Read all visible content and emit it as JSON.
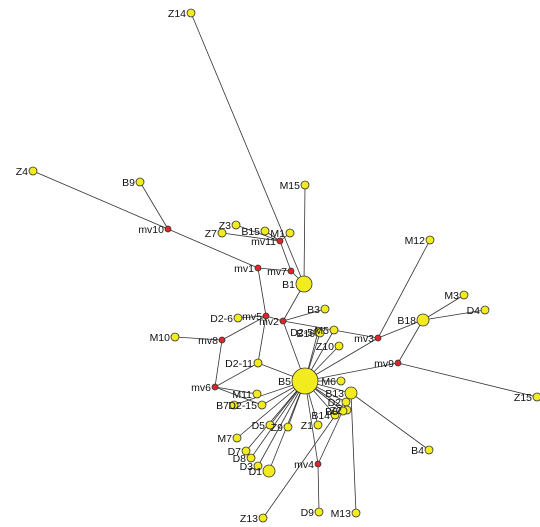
{
  "colors": {
    "sample": "#f2ec1f",
    "median_vector": "#e0252a",
    "edge": "#333333",
    "stroke": "#333333"
  },
  "nodes": [
    {
      "id": "Z14",
      "label": "Z14",
      "kind": "sample"
    },
    {
      "id": "Z4",
      "label": "Z4",
      "kind": "sample"
    },
    {
      "id": "B9",
      "label": "B9",
      "kind": "sample"
    },
    {
      "id": "mv10",
      "label": "mv10",
      "kind": "median_vector"
    },
    {
      "id": "M15",
      "label": "M15",
      "kind": "sample"
    },
    {
      "id": "Z3",
      "label": "Z3",
      "kind": "sample"
    },
    {
      "id": "Z7",
      "label": "Z7",
      "kind": "sample"
    },
    {
      "id": "B15",
      "label": "B15",
      "kind": "sample"
    },
    {
      "id": "M1",
      "label": "M1",
      "kind": "sample"
    },
    {
      "id": "mv11",
      "label": "mv11",
      "kind": "median_vector"
    },
    {
      "id": "mv1",
      "label": "mv1",
      "kind": "median_vector"
    },
    {
      "id": "mv7",
      "label": "mv7",
      "kind": "median_vector"
    },
    {
      "id": "B1",
      "label": "B1",
      "kind": "sample",
      "size": "large"
    },
    {
      "id": "B3",
      "label": "B3",
      "kind": "sample"
    },
    {
      "id": "D2-6",
      "label": "D2-6",
      "kind": "sample"
    },
    {
      "id": "mv5",
      "label": "mv5",
      "kind": "median_vector"
    },
    {
      "id": "mv2",
      "label": "mv2",
      "kind": "median_vector"
    },
    {
      "id": "D2-5",
      "label": "D2-5",
      "kind": "sample"
    },
    {
      "id": "B16",
      "label": "B16",
      "kind": "sample"
    },
    {
      "id": "M5",
      "label": "M5",
      "kind": "sample"
    },
    {
      "id": "M10",
      "label": "M10",
      "kind": "sample"
    },
    {
      "id": "mv8",
      "label": "mv8",
      "kind": "median_vector"
    },
    {
      "id": "Z10",
      "label": "Z10",
      "kind": "sample"
    },
    {
      "id": "D2-11",
      "label": "D2-11",
      "kind": "sample"
    },
    {
      "id": "B5",
      "label": "B5",
      "kind": "sample",
      "size": "hub"
    },
    {
      "id": "mv6",
      "label": "mv6",
      "kind": "median_vector"
    },
    {
      "id": "M11",
      "label": "M11",
      "kind": "sample"
    },
    {
      "id": "B7",
      "label": "B7",
      "kind": "sample"
    },
    {
      "id": "D2-15",
      "label": "D2-15",
      "kind": "sample"
    },
    {
      "id": "M7",
      "label": "M7",
      "kind": "sample"
    },
    {
      "id": "D5",
      "label": "D5",
      "kind": "sample"
    },
    {
      "id": "Z9",
      "label": "Z9",
      "kind": "sample"
    },
    {
      "id": "Z1",
      "label": "Z1",
      "kind": "sample"
    },
    {
      "id": "D7",
      "label": "D7",
      "kind": "sample"
    },
    {
      "id": "D8",
      "label": "D8",
      "kind": "sample"
    },
    {
      "id": "D3",
      "label": "D3",
      "kind": "sample"
    },
    {
      "id": "D1",
      "label": "D1",
      "kind": "sample",
      "size": "medium"
    },
    {
      "id": "M6",
      "label": "M6",
      "kind": "sample"
    },
    {
      "id": "B13",
      "label": "B13",
      "kind": "sample",
      "size": "medium"
    },
    {
      "id": "D2",
      "label": "D2",
      "kind": "sample"
    },
    {
      "id": "Z2",
      "label": "Z2",
      "kind": "sample"
    },
    {
      "id": "B8",
      "label": "B8",
      "kind": "sample"
    },
    {
      "id": "B14",
      "label": "B14",
      "kind": "sample"
    },
    {
      "id": "mv4",
      "label": "mv4",
      "kind": "median_vector"
    },
    {
      "id": "D9",
      "label": "D9",
      "kind": "sample"
    },
    {
      "id": "M13",
      "label": "M13",
      "kind": "sample"
    },
    {
      "id": "Z13",
      "label": "Z13",
      "kind": "sample"
    },
    {
      "id": "M12",
      "label": "M12",
      "kind": "sample"
    },
    {
      "id": "M3",
      "label": "M3",
      "kind": "sample"
    },
    {
      "id": "D4",
      "label": "D4",
      "kind": "sample"
    },
    {
      "id": "B18",
      "label": "B18",
      "kind": "sample",
      "size": "medium"
    },
    {
      "id": "mv3",
      "label": "mv3",
      "kind": "median_vector"
    },
    {
      "id": "mv9",
      "label": "mv9",
      "kind": "median_vector"
    },
    {
      "id": "Z15",
      "label": "Z15",
      "kind": "sample"
    },
    {
      "id": "B4",
      "label": "B4",
      "kind": "sample"
    }
  ],
  "edges": [
    [
      "Z14",
      "B1"
    ],
    [
      "Z4",
      "mv10"
    ],
    [
      "B9",
      "mv10"
    ],
    [
      "mv10",
      "mv1"
    ],
    [
      "M15",
      "B1"
    ],
    [
      "Z3",
      "mv11"
    ],
    [
      "Z7",
      "mv11"
    ],
    [
      "B15",
      "mv11"
    ],
    [
      "M1",
      "mv11"
    ],
    [
      "mv11",
      "mv7"
    ],
    [
      "mv1",
      "mv7"
    ],
    [
      "mv1",
      "mv5"
    ],
    [
      "mv7",
      "B1"
    ],
    [
      "B1",
      "mv2"
    ],
    [
      "mv2",
      "B3"
    ],
    [
      "mv2",
      "mv5"
    ],
    [
      "mv2",
      "mv3"
    ],
    [
      "mv2",
      "B5"
    ],
    [
      "D2-6",
      "mv5"
    ],
    [
      "mv5",
      "D2-11"
    ],
    [
      "mv5",
      "mv8"
    ],
    [
      "M10",
      "mv8"
    ],
    [
      "mv8",
      "mv6"
    ],
    [
      "mv6",
      "D2-11"
    ],
    [
      "D2-11",
      "B5"
    ],
    [
      "mv6",
      "M11"
    ],
    [
      "mv6",
      "D2-15"
    ],
    [
      "D2-5",
      "B5"
    ],
    [
      "B16",
      "B5"
    ],
    [
      "M5",
      "B5"
    ],
    [
      "Z10",
      "B5"
    ],
    [
      "B7",
      "B5"
    ],
    [
      "M7",
      "B5"
    ],
    [
      "D2-15",
      "B5"
    ],
    [
      "D5",
      "B5"
    ],
    [
      "Z9",
      "B5"
    ],
    [
      "Z1",
      "B5"
    ],
    [
      "D7",
      "B5"
    ],
    [
      "D8",
      "B5"
    ],
    [
      "D3",
      "B5"
    ],
    [
      "D1",
      "B5"
    ],
    [
      "M6",
      "B5"
    ],
    [
      "B13",
      "B5"
    ],
    [
      "D2",
      "B5"
    ],
    [
      "Z2",
      "B5"
    ],
    [
      "B8",
      "B5"
    ],
    [
      "B14",
      "B5"
    ],
    [
      "mv4",
      "B5"
    ],
    [
      "mv4",
      "D9"
    ],
    [
      "mv4",
      "B13"
    ],
    [
      "Z13",
      "B13"
    ],
    [
      "M13",
      "B13"
    ],
    [
      "M12",
      "mv3"
    ],
    [
      "mv3",
      "B18"
    ],
    [
      "M3",
      "B18"
    ],
    [
      "D4",
      "B18"
    ],
    [
      "mv3",
      "B5"
    ],
    [
      "mv9",
      "B5"
    ],
    [
      "mv9",
      "B18"
    ],
    [
      "mv9",
      "Z15"
    ],
    [
      "B4",
      "B13"
    ]
  ]
}
